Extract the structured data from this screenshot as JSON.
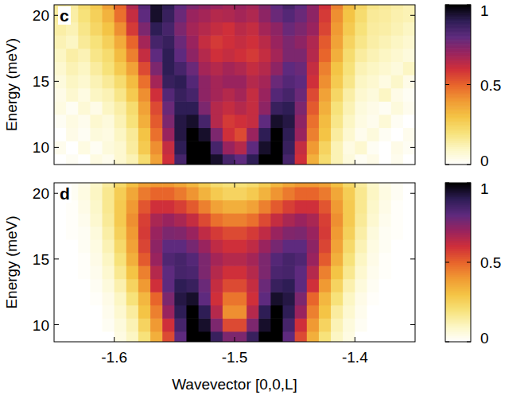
{
  "chart_data": [
    {
      "type": "heatmap",
      "panel": "c",
      "ylabel": "Energy (meV)",
      "tick_labels": "y",
      "xlim": [
        -1.65,
        -1.35
      ],
      "ylim": [
        8.7,
        20.8
      ],
      "xticks": [
        -1.6,
        -1.5,
        -1.4
      ],
      "yticks": [
        10,
        15,
        20
      ],
      "x": [
        -1.645,
        -1.635,
        -1.625,
        -1.615,
        -1.605,
        -1.595,
        -1.585,
        -1.575,
        -1.565,
        -1.555,
        -1.545,
        -1.535,
        -1.525,
        -1.515,
        -1.505,
        -1.495,
        -1.485,
        -1.475,
        -1.465,
        -1.455,
        -1.445,
        -1.435,
        -1.425,
        -1.415,
        -1.405,
        -1.395,
        -1.385,
        -1.375,
        -1.365,
        -1.355
      ],
      "y": [
        9,
        10,
        11,
        12,
        13,
        14,
        15,
        16,
        17,
        18,
        19,
        20,
        21
      ],
      "values": [
        [
          0,
          0.02,
          0,
          0.05,
          0.03,
          0.08,
          0.12,
          0.22,
          0.38,
          0.6,
          0.85,
          1,
          1,
          0.95,
          0.85,
          0.8,
          0.9,
          1,
          1,
          0.85,
          0.6,
          0.35,
          0.22,
          0.12,
          0.06,
          0.02,
          0.04,
          0,
          0.03,
          0
        ],
        [
          0.03,
          0,
          0.05,
          0.02,
          0.06,
          0.08,
          0.15,
          0.28,
          0.42,
          0.62,
          0.9,
          1,
          1,
          0.85,
          0.7,
          0.65,
          0.8,
          0.95,
          1,
          0.88,
          0.62,
          0.4,
          0.25,
          0.12,
          0.05,
          0.08,
          0.02,
          0,
          0.04,
          0.02
        ],
        [
          0,
          0.04,
          0.02,
          0.06,
          0.05,
          0.1,
          0.16,
          0.3,
          0.48,
          0.7,
          0.92,
          1,
          0.95,
          0.75,
          0.6,
          0.55,
          0.7,
          0.9,
          1,
          0.9,
          0.7,
          0.45,
          0.3,
          0.15,
          0.08,
          0.03,
          0.06,
          0.02,
          0,
          0.03
        ],
        [
          0.02,
          0.05,
          0.03,
          0.08,
          0.06,
          0.12,
          0.2,
          0.35,
          0.52,
          0.75,
          0.92,
          0.95,
          0.85,
          0.65,
          0.58,
          0.6,
          0.62,
          0.8,
          0.95,
          0.92,
          0.72,
          0.48,
          0.32,
          0.18,
          0.1,
          0.05,
          0.03,
          0.07,
          0.02,
          0
        ],
        [
          0.05,
          0.02,
          0.07,
          0.04,
          0.1,
          0.14,
          0.22,
          0.38,
          0.55,
          0.78,
          0.9,
          0.9,
          0.75,
          0.65,
          0.62,
          0.65,
          0.62,
          0.72,
          0.88,
          0.9,
          0.75,
          0.52,
          0.35,
          0.2,
          0.12,
          0.06,
          0.04,
          0.02,
          0.06,
          0.03
        ],
        [
          0.04,
          0.08,
          0.05,
          0.1,
          0.12,
          0.18,
          0.28,
          0.42,
          0.6,
          0.82,
          0.88,
          0.85,
          0.72,
          0.68,
          0.65,
          0.68,
          0.62,
          0.7,
          0.82,
          0.85,
          0.78,
          0.55,
          0.38,
          0.24,
          0.14,
          0.08,
          0.06,
          0.1,
          0.04,
          0.02
        ],
        [
          0.06,
          0.1,
          0.08,
          0.12,
          0.16,
          0.22,
          0.32,
          0.48,
          0.68,
          0.88,
          0.9,
          0.82,
          0.72,
          0.68,
          0.7,
          0.7,
          0.65,
          0.68,
          0.78,
          0.82,
          0.8,
          0.6,
          0.42,
          0.28,
          0.18,
          0.1,
          0.08,
          0.05,
          0.09,
          0.04
        ],
        [
          0.08,
          0.12,
          0.1,
          0.15,
          0.2,
          0.28,
          0.38,
          0.55,
          0.75,
          0.9,
          0.85,
          0.78,
          0.68,
          0.65,
          0.68,
          0.66,
          0.62,
          0.65,
          0.72,
          0.8,
          0.78,
          0.62,
          0.45,
          0.3,
          0.2,
          0.12,
          0.1,
          0.08,
          0.06,
          0.1
        ],
        [
          0.1,
          0.14,
          0.12,
          0.18,
          0.22,
          0.32,
          0.45,
          0.62,
          0.8,
          0.9,
          0.8,
          0.72,
          0.65,
          0.6,
          0.62,
          0.6,
          0.58,
          0.62,
          0.68,
          0.75,
          0.75,
          0.65,
          0.5,
          0.35,
          0.22,
          0.15,
          0.12,
          0.1,
          0.08,
          0.06
        ],
        [
          0.12,
          0.1,
          0.16,
          0.2,
          0.26,
          0.36,
          0.5,
          0.68,
          0.85,
          0.88,
          0.78,
          0.7,
          0.62,
          0.58,
          0.6,
          0.62,
          0.6,
          0.64,
          0.7,
          0.75,
          0.72,
          0.66,
          0.52,
          0.38,
          0.25,
          0.18,
          0.14,
          0.12,
          0.1,
          0.08
        ],
        [
          0.14,
          0.12,
          0.18,
          0.24,
          0.3,
          0.42,
          0.58,
          0.75,
          0.9,
          0.85,
          0.75,
          0.68,
          0.65,
          0.62,
          0.6,
          0.64,
          0.62,
          0.68,
          0.72,
          0.78,
          0.75,
          0.7,
          0.56,
          0.4,
          0.28,
          0.2,
          0.15,
          0.14,
          0.12,
          0.1
        ],
        [
          0.15,
          0.14,
          0.2,
          0.26,
          0.34,
          0.48,
          0.62,
          0.8,
          0.95,
          0.88,
          0.78,
          0.7,
          0.68,
          0.65,
          0.66,
          0.68,
          0.66,
          0.72,
          0.78,
          0.82,
          0.78,
          0.72,
          0.58,
          0.42,
          0.3,
          0.22,
          0.16,
          0.15,
          0.13,
          0.12
        ],
        [
          0.16,
          0.15,
          0.22,
          0.28,
          0.38,
          0.5,
          0.66,
          0.82,
          0.95,
          0.9,
          0.8,
          0.75,
          0.72,
          0.7,
          0.68,
          0.7,
          0.68,
          0.74,
          0.8,
          0.85,
          0.8,
          0.72,
          0.6,
          0.45,
          0.32,
          0.24,
          0.18,
          0.16,
          0.14,
          0.12
        ]
      ],
      "colorbar_range": [
        0,
        1
      ],
      "colorbar_ticks": [
        0,
        0.5,
        1
      ]
    },
    {
      "type": "heatmap",
      "panel": "d",
      "ylabel": "Energy (meV)",
      "xlabel": "Wavevector [0,0,L]",
      "xlim": [
        -1.65,
        -1.35
      ],
      "ylim": [
        8.7,
        20.8
      ],
      "xticks": [
        -1.6,
        -1.5,
        -1.4
      ],
      "yticks": [
        10,
        15,
        20
      ],
      "x": [
        -1.645,
        -1.635,
        -1.625,
        -1.615,
        -1.605,
        -1.595,
        -1.585,
        -1.575,
        -1.565,
        -1.555,
        -1.545,
        -1.535,
        -1.525,
        -1.515,
        -1.505,
        -1.495,
        -1.485,
        -1.475,
        -1.465,
        -1.455,
        -1.445,
        -1.435,
        -1.425,
        -1.415,
        -1.405,
        -1.395,
        -1.385,
        -1.375,
        -1.365,
        -1.355
      ],
      "y": [
        9,
        10,
        11,
        12,
        13,
        14,
        15,
        16,
        17,
        18,
        19,
        20,
        21
      ],
      "values": [
        [
          0,
          0,
          0,
          0,
          0,
          0.05,
          0.1,
          0.2,
          0.35,
          0.55,
          0.8,
          1,
          1,
          0.88,
          0.75,
          0.75,
          0.88,
          1,
          1,
          0.8,
          0.55,
          0.35,
          0.2,
          0.1,
          0.05,
          0,
          0,
          0,
          0,
          0
        ],
        [
          0,
          0,
          0,
          0,
          0.02,
          0.06,
          0.12,
          0.25,
          0.4,
          0.6,
          0.85,
          1,
          0.95,
          0.75,
          0.55,
          0.55,
          0.75,
          0.95,
          1,
          0.85,
          0.6,
          0.4,
          0.25,
          0.12,
          0.06,
          0.02,
          0,
          0,
          0,
          0
        ],
        [
          0,
          0,
          0,
          0,
          0.03,
          0.08,
          0.15,
          0.3,
          0.45,
          0.7,
          0.9,
          1,
          0.9,
          0.65,
          0.42,
          0.42,
          0.65,
          0.9,
          1,
          0.9,
          0.7,
          0.45,
          0.3,
          0.15,
          0.08,
          0.03,
          0,
          0,
          0,
          0
        ],
        [
          0,
          0,
          0,
          0.01,
          0.04,
          0.1,
          0.2,
          0.33,
          0.5,
          0.75,
          0.92,
          0.95,
          0.8,
          0.6,
          0.47,
          0.47,
          0.6,
          0.8,
          0.95,
          0.92,
          0.75,
          0.5,
          0.33,
          0.2,
          0.1,
          0.04,
          0.01,
          0,
          0,
          0
        ],
        [
          0,
          0,
          0,
          0.02,
          0.06,
          0.13,
          0.25,
          0.4,
          0.6,
          0.8,
          0.9,
          0.88,
          0.78,
          0.62,
          0.55,
          0.55,
          0.62,
          0.78,
          0.88,
          0.9,
          0.8,
          0.6,
          0.4,
          0.25,
          0.13,
          0.06,
          0.02,
          0,
          0,
          0
        ],
        [
          0,
          0,
          0.01,
          0.03,
          0.08,
          0.17,
          0.3,
          0.45,
          0.65,
          0.8,
          0.85,
          0.84,
          0.75,
          0.65,
          0.6,
          0.6,
          0.65,
          0.75,
          0.84,
          0.85,
          0.8,
          0.65,
          0.45,
          0.3,
          0.17,
          0.08,
          0.03,
          0.01,
          0,
          0
        ],
        [
          0,
          0,
          0.01,
          0.04,
          0.1,
          0.2,
          0.35,
          0.52,
          0.7,
          0.83,
          0.85,
          0.82,
          0.75,
          0.68,
          0.65,
          0.65,
          0.68,
          0.75,
          0.82,
          0.85,
          0.83,
          0.7,
          0.52,
          0.35,
          0.2,
          0.1,
          0.04,
          0.01,
          0,
          0
        ],
        [
          0,
          0,
          0.02,
          0.05,
          0.12,
          0.23,
          0.38,
          0.56,
          0.72,
          0.8,
          0.8,
          0.76,
          0.7,
          0.63,
          0.6,
          0.6,
          0.63,
          0.7,
          0.76,
          0.8,
          0.8,
          0.72,
          0.56,
          0.38,
          0.23,
          0.12,
          0.05,
          0.02,
          0,
          0
        ],
        [
          0,
          0.01,
          0.02,
          0.06,
          0.14,
          0.26,
          0.4,
          0.58,
          0.7,
          0.75,
          0.74,
          0.7,
          0.63,
          0.58,
          0.55,
          0.55,
          0.58,
          0.63,
          0.7,
          0.74,
          0.75,
          0.7,
          0.58,
          0.4,
          0.26,
          0.14,
          0.06,
          0.02,
          0.01,
          0
        ],
        [
          0,
          0.01,
          0.03,
          0.08,
          0.16,
          0.28,
          0.42,
          0.57,
          0.67,
          0.7,
          0.67,
          0.62,
          0.55,
          0.48,
          0.45,
          0.45,
          0.48,
          0.55,
          0.62,
          0.67,
          0.7,
          0.67,
          0.57,
          0.42,
          0.28,
          0.16,
          0.08,
          0.03,
          0.01,
          0
        ],
        [
          0,
          0.01,
          0.04,
          0.09,
          0.17,
          0.28,
          0.4,
          0.53,
          0.6,
          0.6,
          0.57,
          0.52,
          0.45,
          0.38,
          0.35,
          0.35,
          0.38,
          0.45,
          0.52,
          0.57,
          0.6,
          0.6,
          0.53,
          0.4,
          0.28,
          0.17,
          0.09,
          0.04,
          0.01,
          0
        ],
        [
          0,
          0.02,
          0.05,
          0.1,
          0.17,
          0.27,
          0.37,
          0.46,
          0.5,
          0.5,
          0.46,
          0.41,
          0.34,
          0.28,
          0.25,
          0.25,
          0.28,
          0.34,
          0.41,
          0.46,
          0.5,
          0.5,
          0.46,
          0.37,
          0.27,
          0.17,
          0.1,
          0.05,
          0.02,
          0
        ],
        [
          0,
          0.02,
          0.04,
          0.09,
          0.15,
          0.23,
          0.31,
          0.38,
          0.4,
          0.4,
          0.37,
          0.33,
          0.27,
          0.22,
          0.2,
          0.2,
          0.22,
          0.27,
          0.33,
          0.37,
          0.4,
          0.4,
          0.38,
          0.31,
          0.23,
          0.15,
          0.09,
          0.04,
          0.02,
          0
        ]
      ],
      "colorbar_range": [
        0,
        1
      ],
      "colorbar_ticks": [
        0,
        0.5,
        1
      ]
    }
  ]
}
